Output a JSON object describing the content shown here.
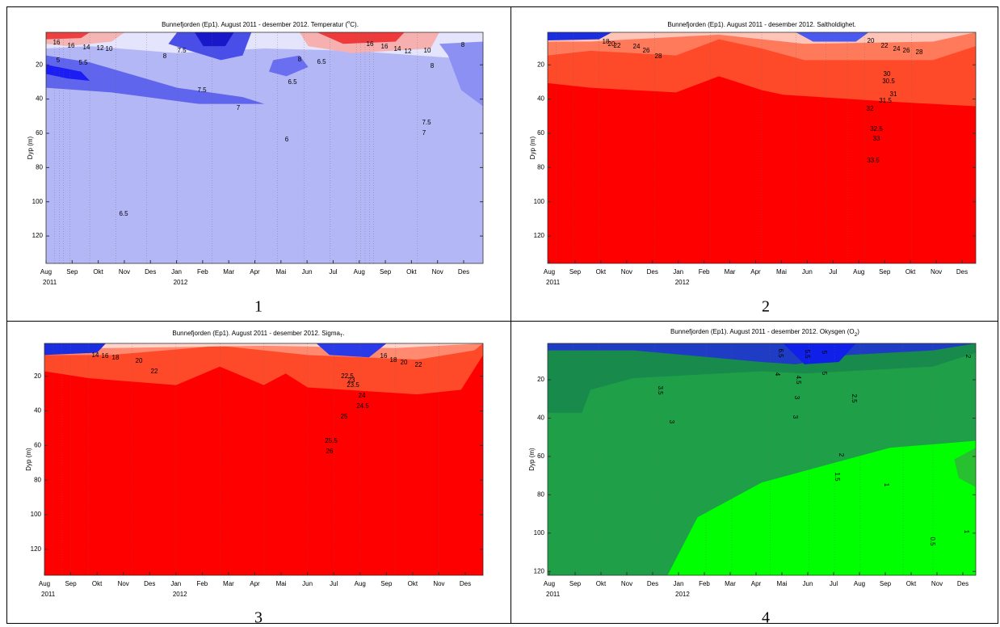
{
  "figure": {
    "panels": [
      {
        "title": [
          {
            "text": "Bunnefjorden (Ep1). August 2011 - desember 2012. Temperatur (",
            "baseline": "normal"
          },
          {
            "text": "o",
            "baseline": "super"
          },
          {
            "text": "C).",
            "baseline": "normal"
          }
        ],
        "ylabel": "Dyp (m)",
        "months": [
          "Aug",
          "Sep",
          "Okt",
          "Nov",
          "Des",
          "Jan",
          "Feb",
          "Mar",
          "Apr",
          "Mai",
          "Jun",
          "Jul",
          "Aug",
          "Sep",
          "Okt",
          "Nov",
          "Des"
        ],
        "years": [
          "2011",
          "2012"
        ],
        "ylim": [
          1,
          136
        ],
        "yticks": [
          20,
          40,
          60,
          80,
          100,
          120
        ],
        "contour_labels": [
          "16",
          "16",
          "14",
          "12",
          "10",
          "5",
          "5.5",
          "8",
          "7.5",
          "7.5",
          "7",
          "6.5",
          "6",
          "6.5",
          "8",
          "6.5",
          "16",
          "16",
          "14",
          "12",
          "10",
          "8",
          "7.5",
          "7",
          "8"
        ],
        "number": "1"
      },
      {
        "title": [
          {
            "text": "Bunnefjorden (Ep1). August 2011 - desember 2012. Saltholdighet.",
            "baseline": "normal"
          }
        ],
        "ylabel": "Dyp (m)",
        "months": [
          "Aug",
          "Sep",
          "Okt",
          "Nov",
          "Des",
          "Jan",
          "Feb",
          "Mar",
          "Apr",
          "Mai",
          "Jun",
          "Jul",
          "Aug",
          "Sep",
          "Okt",
          "Nov",
          "Des"
        ],
        "years": [
          "2011",
          "2012"
        ],
        "ylim": [
          1,
          136
        ],
        "yticks": [
          20,
          40,
          60,
          80,
          100,
          120
        ],
        "contour_labels": [
          "18",
          "20",
          "22",
          "24",
          "26",
          "28",
          "20",
          "22",
          "24",
          "26",
          "28",
          "30",
          "30.5",
          "31",
          "31.5",
          "32",
          "32.5",
          "33",
          "33.5"
        ],
        "number": "2"
      },
      {
        "title": [
          {
            "text": "Bunnefjorden (Ep1). August 2011 - desember 2012. Sigma",
            "baseline": "normal"
          },
          {
            "text": "T",
            "baseline": "sub"
          },
          {
            "text": ".",
            "baseline": "normal"
          }
        ],
        "ylabel": "Dyp (m)",
        "months": [
          "Aug",
          "Sep",
          "Okt",
          "Nov",
          "Des",
          "Jan",
          "Feb",
          "Mar",
          "Apr",
          "Mai",
          "Jun",
          "Jul",
          "Aug",
          "Sep",
          "Okt",
          "Nov",
          "Des"
        ],
        "years": [
          "2011",
          "2012"
        ],
        "ylim": [
          1,
          135
        ],
        "yticks": [
          20,
          40,
          60,
          80,
          100,
          120
        ],
        "contour_labels": [
          "14",
          "16",
          "18",
          "20",
          "22",
          "22.5",
          "23",
          "23.5",
          "24",
          "24.5",
          "25",
          "25.5",
          "26",
          "16",
          "18",
          "20",
          "22"
        ],
        "number": "3"
      },
      {
        "title": [
          {
            "text": "Bunnefjorden (Ep1). August 2011 - desember 2012. Okysgen (O",
            "baseline": "normal"
          },
          {
            "text": "2",
            "baseline": "sub"
          },
          {
            "text": ")",
            "baseline": "normal"
          }
        ],
        "ylabel": "Dyp (m)",
        "months": [
          "Aug",
          "Sep",
          "Okt",
          "Nov",
          "Des",
          "Jan",
          "Feb",
          "Mar",
          "Apr",
          "Mai",
          "Jun",
          "Jul",
          "Aug",
          "Sep",
          "Okt",
          "Nov",
          "Des"
        ],
        "years": [
          "2011",
          "2012"
        ],
        "ylim": [
          1,
          122
        ],
        "yticks": [
          20,
          40,
          60,
          80,
          100,
          120
        ],
        "contour_labels": [
          "6.5",
          "5.5",
          "5",
          "5",
          "4",
          "4.5",
          "3",
          "3",
          "3.5",
          "3",
          "2.5",
          "2",
          "1.5",
          "1",
          "0.5",
          "1",
          "2"
        ],
        "number": "4"
      }
    ]
  }
}
